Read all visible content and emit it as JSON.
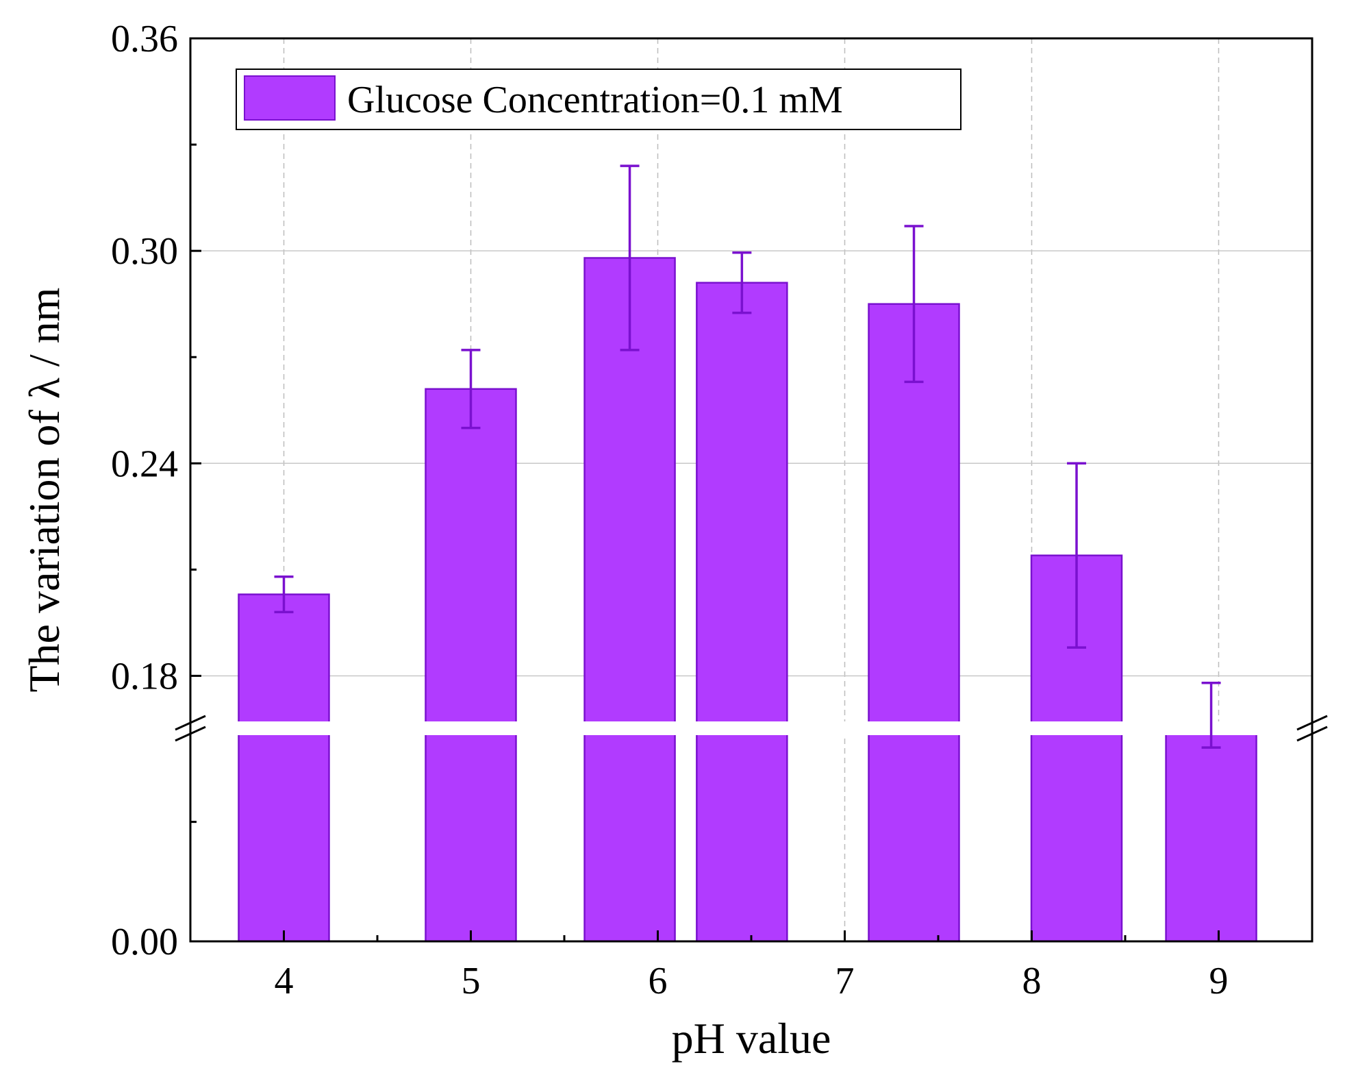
{
  "chart_data": {
    "type": "bar",
    "title": "",
    "xlabel": "pH value",
    "ylabel": "The variation of λ / nm",
    "legend": {
      "label": "Glucose Concentration=0.1 mM",
      "placement": "top-left"
    },
    "x_ticks": [
      "4",
      "5",
      "6",
      "7",
      "8",
      "9"
    ],
    "x_tick_values": [
      4,
      5,
      6,
      7,
      8,
      9
    ],
    "xlim": [
      3.5,
      9.5
    ],
    "y_ticks": [
      "0.00",
      "0.18",
      "0.24",
      "0.30",
      "0.36"
    ],
    "y_tick_values": [
      0.0,
      0.18,
      0.24,
      0.3,
      0.36
    ],
    "y_minor_ticks": [
      0.09,
      0.21,
      0.27,
      0.33
    ],
    "y_axis_break": [
      0.16,
      0.165
    ],
    "ylim": [
      0.0,
      0.36
    ],
    "grid": true,
    "series": [
      {
        "name": "Glucose Concentration=0.1 mM",
        "color": "#b13bff",
        "edge_color": "#7a11cf",
        "points": [
          {
            "x": 4.0,
            "value": 0.203,
            "error": 0.005
          },
          {
            "x": 5.0,
            "value": 0.261,
            "error": 0.011
          },
          {
            "x": 5.85,
            "value": 0.298,
            "error": 0.026
          },
          {
            "x": 6.45,
            "value": 0.291,
            "error": 0.0085
          },
          {
            "x": 7.37,
            "value": 0.285,
            "error": 0.022
          },
          {
            "x": 8.24,
            "value": 0.214,
            "error": 0.026
          },
          {
            "x": 8.96,
            "value": 0.162,
            "error": 0.016
          }
        ]
      }
    ]
  }
}
